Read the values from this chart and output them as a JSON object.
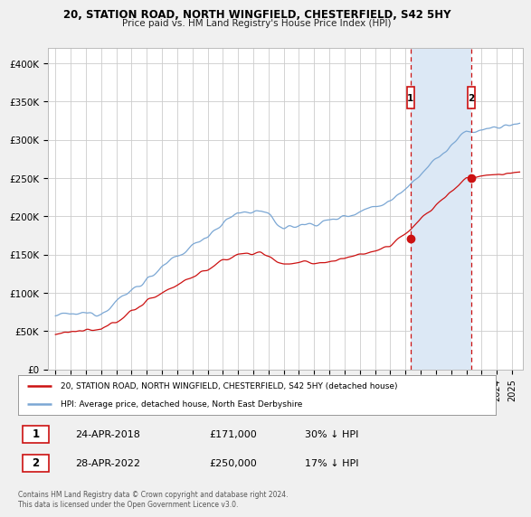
{
  "title": "20, STATION ROAD, NORTH WINGFIELD, CHESTERFIELD, S42 5HY",
  "subtitle": "Price paid vs. HM Land Registry's House Price Index (HPI)",
  "ylabel_ticks": [
    "£0",
    "£50K",
    "£100K",
    "£150K",
    "£200K",
    "£250K",
    "£300K",
    "£350K",
    "£400K"
  ],
  "ytick_values": [
    0,
    50000,
    100000,
    150000,
    200000,
    250000,
    300000,
    350000,
    400000
  ],
  "ylim": [
    0,
    420000
  ],
  "hpi_color": "#7ba7d4",
  "price_color": "#cc1111",
  "sale1_t": 2018.33,
  "sale2_t": 2022.33,
  "sale1_price_y": 171000,
  "sale2_price_y": 250000,
  "sale1_label": "1",
  "sale2_label": "2",
  "sale1_date": "24-APR-2018",
  "sale1_price": "£171,000",
  "sale1_hpi": "30% ↓ HPI",
  "sale2_date": "28-APR-2022",
  "sale2_price": "£250,000",
  "sale2_hpi": "17% ↓ HPI",
  "legend_label1": "20, STATION ROAD, NORTH WINGFIELD, CHESTERFIELD, S42 5HY (detached house)",
  "legend_label2": "HPI: Average price, detached house, North East Derbyshire",
  "footnote": "Contains HM Land Registry data © Crown copyright and database right 2024.\nThis data is licensed under the Open Government Licence v3.0.",
  "fig_bg_color": "#f0f0f0",
  "plot_bg_color": "#ffffff",
  "shade_color": "#dce8f5",
  "grid_color": "#cccccc",
  "xlim_left": 1994.5,
  "xlim_right": 2025.7
}
